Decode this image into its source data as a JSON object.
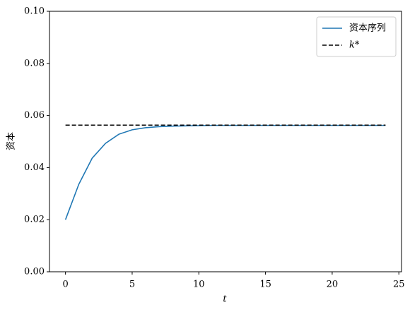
{
  "chart_data": {
    "type": "line",
    "x_label": "t",
    "y_label": "资本",
    "x": [
      0,
      1,
      2,
      3,
      4,
      5,
      6,
      7,
      8,
      9,
      10,
      11,
      12,
      13,
      14,
      15,
      16,
      17,
      18,
      19,
      20,
      21,
      22,
      23,
      24
    ],
    "series": [
      {
        "name": "资本序列",
        "color": "#1f77b4",
        "style": "solid",
        "values": [
          0.02,
          0.0336,
          0.0436,
          0.0493,
          0.0528,
          0.0545,
          0.0553,
          0.0557,
          0.0559,
          0.056,
          0.0561,
          0.0562,
          0.0562,
          0.0562,
          0.0562,
          0.0562,
          0.0562,
          0.0562,
          0.0562,
          0.0562,
          0.0562,
          0.0562,
          0.0562,
          0.0562,
          0.0562
        ]
      },
      {
        "name": "k*",
        "color": "#000000",
        "style": "dashed",
        "x": [
          0,
          24
        ],
        "values": [
          0.0563,
          0.0563
        ]
      }
    ],
    "xlim": [
      -1.2,
      25.2
    ],
    "xticks": [
      0,
      5,
      10,
      15,
      20,
      25
    ],
    "ylim": [
      0,
      0.1
    ],
    "yticks": [
      {
        "value": 0,
        "label": "0.00"
      },
      {
        "value": 0.02,
        "label": "0.02"
      },
      {
        "value": 0.04,
        "label": "0.04"
      },
      {
        "value": 0.06,
        "label": "0.06"
      },
      {
        "value": 0.08,
        "label": "0.08"
      },
      {
        "value": 0.1,
        "label": "0.10"
      }
    ],
    "grid": false,
    "legend": "upper right"
  }
}
